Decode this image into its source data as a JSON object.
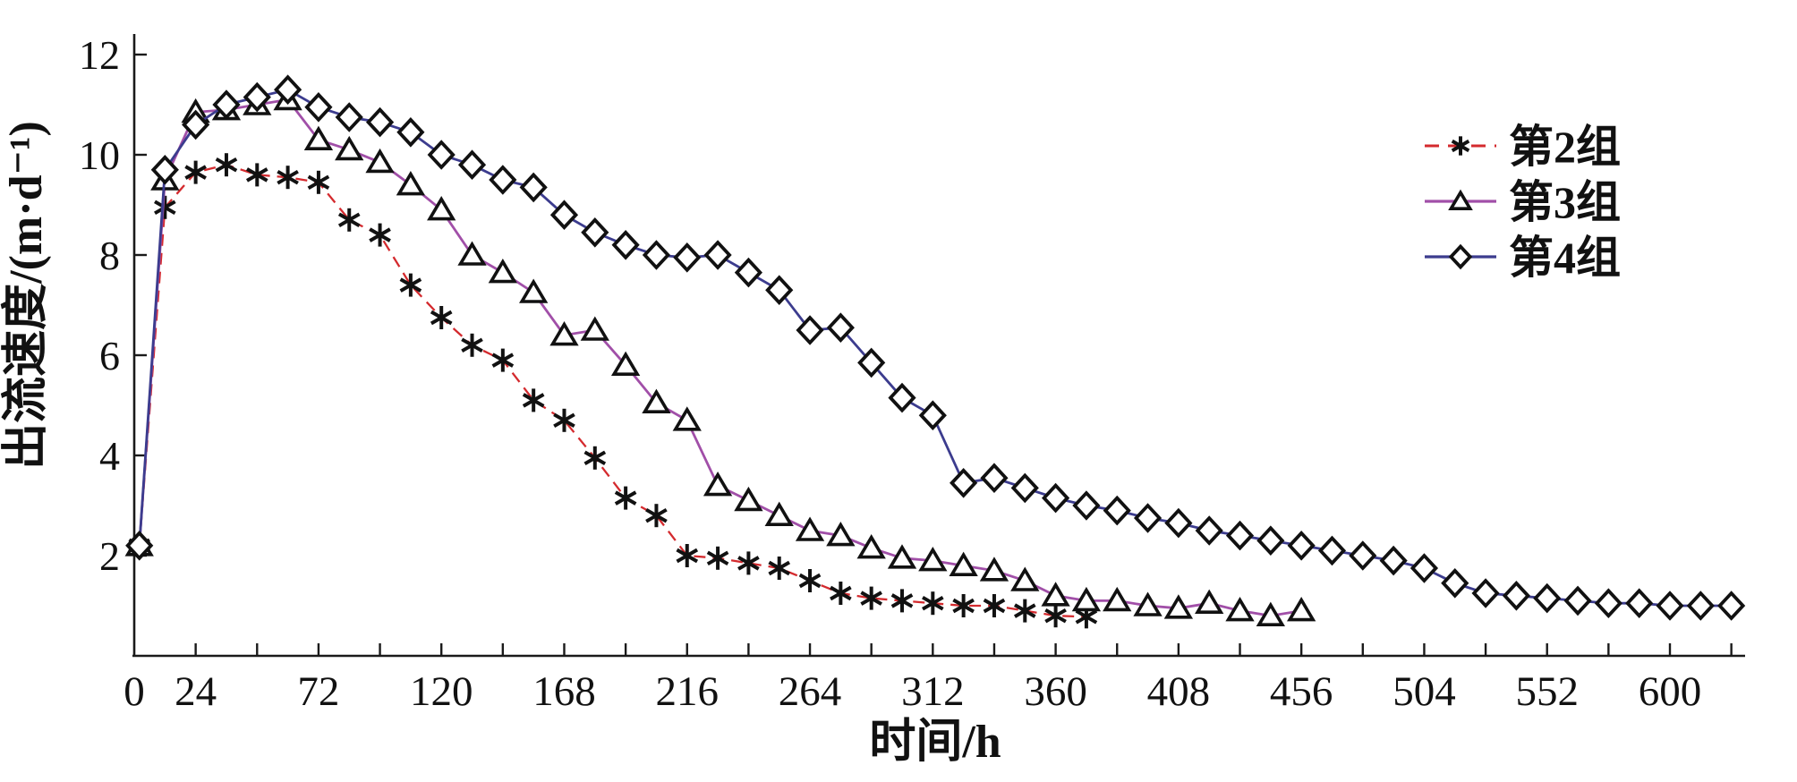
{
  "chart_data": {
    "type": "line",
    "title": "",
    "xlabel": "时间/h",
    "ylabel": "出流速度/(m·d⁻¹)",
    "xlim": [
      0,
      648
    ],
    "ylim": [
      0,
      12
    ],
    "grid": false,
    "legend_position": "upper-right",
    "x_axis": {
      "title": "时间/h",
      "tick_step": 24,
      "ticks": [
        24,
        48,
        72,
        96,
        120,
        144,
        168,
        192,
        216,
        240,
        264,
        288,
        312,
        336,
        360,
        384,
        408,
        432,
        456,
        480,
        504,
        528,
        552,
        576,
        600,
        624
      ],
      "labeled": [
        0,
        24,
        72,
        120,
        168,
        216,
        264,
        312,
        360,
        408,
        456,
        504,
        552,
        600
      ]
    },
    "y_axis": {
      "title": "出流速度/(m·d⁻¹)",
      "ticks": [
        2,
        4,
        6,
        8,
        10,
        12
      ]
    },
    "series": [
      {
        "name": "第2组",
        "color": "#d42a2e",
        "line_style": "dashed",
        "marker": "star6",
        "marker_color": "#111111",
        "points": [
          [
            2,
            2.2
          ],
          [
            12,
            8.95
          ],
          [
            24,
            9.65
          ],
          [
            36,
            9.8
          ],
          [
            48,
            9.6
          ],
          [
            60,
            9.55
          ],
          [
            72,
            9.45
          ],
          [
            84,
            8.7
          ],
          [
            96,
            8.4
          ],
          [
            108,
            7.4
          ],
          [
            120,
            6.75
          ],
          [
            132,
            6.2
          ],
          [
            144,
            5.9
          ],
          [
            156,
            5.1
          ],
          [
            168,
            4.7
          ],
          [
            180,
            3.95
          ],
          [
            192,
            3.15
          ],
          [
            204,
            2.8
          ],
          [
            216,
            2.0
          ],
          [
            228,
            1.95
          ],
          [
            240,
            1.85
          ],
          [
            252,
            1.75
          ],
          [
            264,
            1.5
          ],
          [
            276,
            1.25
          ],
          [
            288,
            1.15
          ],
          [
            300,
            1.1
          ],
          [
            312,
            1.05
          ],
          [
            324,
            1.0
          ],
          [
            336,
            1.0
          ],
          [
            348,
            0.9
          ],
          [
            360,
            0.8
          ],
          [
            372,
            0.78
          ]
        ]
      },
      {
        "name": "第3组",
        "color": "#a14fa8",
        "line_style": "solid",
        "marker": "triangle",
        "marker_color": "#111111",
        "points": [
          [
            2,
            2.2
          ],
          [
            12,
            9.5
          ],
          [
            24,
            10.85
          ],
          [
            36,
            10.9
          ],
          [
            48,
            11.0
          ],
          [
            60,
            11.1
          ],
          [
            72,
            10.3
          ],
          [
            84,
            10.1
          ],
          [
            96,
            9.85
          ],
          [
            108,
            9.4
          ],
          [
            120,
            8.9
          ],
          [
            132,
            8.0
          ],
          [
            144,
            7.65
          ],
          [
            156,
            7.25
          ],
          [
            168,
            6.4
          ],
          [
            180,
            6.5
          ],
          [
            192,
            5.8
          ],
          [
            204,
            5.05
          ],
          [
            216,
            4.7
          ],
          [
            228,
            3.4
          ],
          [
            240,
            3.1
          ],
          [
            252,
            2.8
          ],
          [
            264,
            2.5
          ],
          [
            276,
            2.4
          ],
          [
            288,
            2.15
          ],
          [
            300,
            1.95
          ],
          [
            312,
            1.9
          ],
          [
            324,
            1.8
          ],
          [
            336,
            1.7
          ],
          [
            348,
            1.5
          ],
          [
            360,
            1.2
          ],
          [
            372,
            1.1
          ],
          [
            384,
            1.1
          ],
          [
            396,
            1.0
          ],
          [
            408,
            0.95
          ],
          [
            420,
            1.05
          ],
          [
            432,
            0.9
          ],
          [
            444,
            0.8
          ],
          [
            456,
            0.9
          ]
        ]
      },
      {
        "name": "第4组",
        "color": "#3c3c8e",
        "line_style": "solid",
        "marker": "diamond",
        "marker_color": "#111111",
        "points": [
          [
            2,
            2.2
          ],
          [
            12,
            9.7
          ],
          [
            24,
            10.6
          ],
          [
            36,
            11.0
          ],
          [
            48,
            11.15
          ],
          [
            60,
            11.3
          ],
          [
            72,
            10.95
          ],
          [
            84,
            10.75
          ],
          [
            96,
            10.65
          ],
          [
            108,
            10.45
          ],
          [
            120,
            10.0
          ],
          [
            132,
            9.8
          ],
          [
            144,
            9.5
          ],
          [
            156,
            9.35
          ],
          [
            168,
            8.8
          ],
          [
            180,
            8.45
          ],
          [
            192,
            8.2
          ],
          [
            204,
            8.0
          ],
          [
            216,
            7.95
          ],
          [
            228,
            8.0
          ],
          [
            240,
            7.65
          ],
          [
            252,
            7.3
          ],
          [
            264,
            6.5
          ],
          [
            276,
            6.55
          ],
          [
            288,
            5.85
          ],
          [
            300,
            5.15
          ],
          [
            312,
            4.8
          ],
          [
            324,
            3.45
          ],
          [
            336,
            3.55
          ],
          [
            348,
            3.35
          ],
          [
            360,
            3.15
          ],
          [
            372,
            3.0
          ],
          [
            384,
            2.9
          ],
          [
            396,
            2.75
          ],
          [
            408,
            2.65
          ],
          [
            420,
            2.5
          ],
          [
            432,
            2.4
          ],
          [
            444,
            2.3
          ],
          [
            456,
            2.2
          ],
          [
            468,
            2.1
          ],
          [
            480,
            2.0
          ],
          [
            492,
            1.9
          ],
          [
            504,
            1.75
          ],
          [
            516,
            1.45
          ],
          [
            528,
            1.25
          ],
          [
            540,
            1.2
          ],
          [
            552,
            1.15
          ],
          [
            564,
            1.1
          ],
          [
            576,
            1.05
          ],
          [
            588,
            1.05
          ],
          [
            600,
            1.0
          ],
          [
            612,
            1.0
          ],
          [
            624,
            1.0
          ]
        ]
      }
    ]
  }
}
